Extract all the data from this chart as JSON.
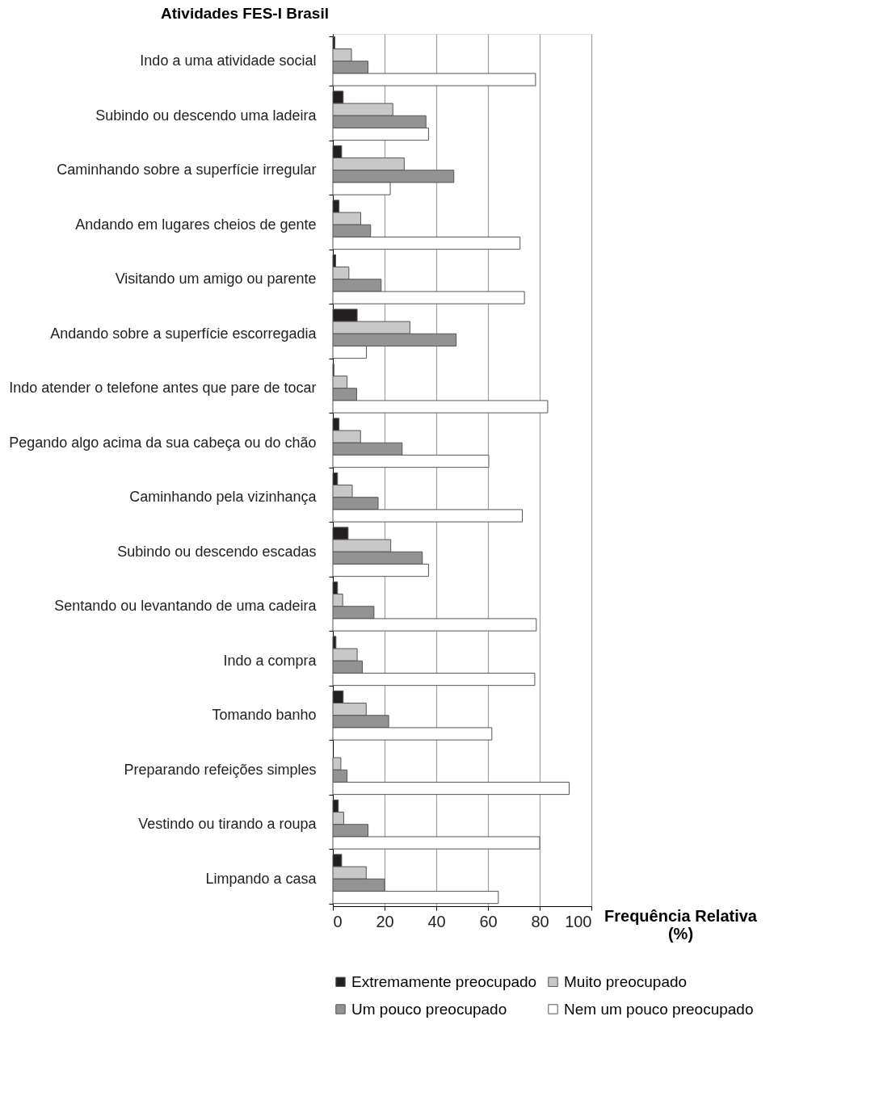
{
  "chart_data": {
    "type": "bar",
    "orientation": "horizontal",
    "title": "Atividades FES-I Brasil",
    "xlabel": "Frequência Relativa (%)",
    "categories": [
      "Indo a uma atividade social",
      "Subindo ou descendo uma ladeira",
      "Caminhando sobre a superfície irregular",
      "Andando em lugares cheios de gente",
      "Visitando um amigo ou parente",
      "Andando sobre a superfície escorregadia",
      "Indo atender o telefone antes que pare de tocar",
      "Pegando algo acima da sua cabeça ou do chão",
      "Caminhando pela vizinhança",
      "Subindo ou descendo escadas",
      "Sentando ou levantando de uma cadeira",
      "Indo a compra",
      "Tomando banho",
      "Preparando refeições simples",
      "Vestindo ou tirando a roupa",
      "Limpando a casa"
    ],
    "series": [
      {
        "name": "Extremamente preocupado",
        "color": "#231f20",
        "values": [
          0.8,
          4.0,
          3.4,
          2.4,
          1.1,
          9.4,
          0.4,
          2.4,
          1.8,
          5.9,
          1.8,
          1.2,
          4.0,
          null,
          2.1,
          3.4
        ]
      },
      {
        "name": "Muito preocupado",
        "color": "#c8c8c8",
        "values": [
          7.2,
          23.2,
          27.6,
          10.8,
          6.2,
          29.8,
          5.5,
          10.7,
          7.5,
          22.4,
          3.8,
          9.4,
          12.9,
          3.1,
          4.2,
          12.9
        ]
      },
      {
        "name": "Um pouco preocupado",
        "color": "#939393",
        "values": [
          13.6,
          36.0,
          46.8,
          14.6,
          18.7,
          47.7,
          9.2,
          26.8,
          17.5,
          34.6,
          15.9,
          11.4,
          21.6,
          5.5,
          13.6,
          20.0
        ]
      },
      {
        "name": "Nem um pouco preocupado",
        "color": "#ffffff",
        "values": [
          78.4,
          37.0,
          22.2,
          72.4,
          74.1,
          13.0,
          83.1,
          60.3,
          73.3,
          37.0,
          78.7,
          78.1,
          61.5,
          91.4,
          80.0,
          64.0
        ]
      }
    ],
    "xlim": [
      0,
      100
    ],
    "xticks": [
      0,
      20,
      40,
      60,
      80,
      100
    ],
    "grid": "x",
    "legend": "bottom"
  }
}
